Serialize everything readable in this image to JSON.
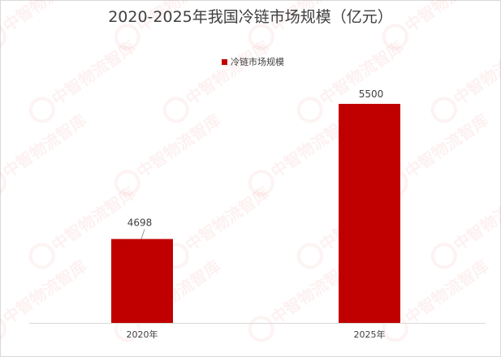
{
  "chart_data": {
    "type": "bar",
    "title": "2020-2025年我国冷链市场规模（亿元）",
    "categories": [
      "2020年",
      "2025年"
    ],
    "series": [
      {
        "name": "冷链市场规模",
        "values": [
          4698,
          5500
        ],
        "color": "#c00000"
      }
    ],
    "data_labels": [
      "4698",
      "5500"
    ],
    "xlabel": "",
    "ylabel": "",
    "ylim": [
      0,
      5500
    ],
    "grid": false,
    "legend_position": "top"
  },
  "watermark": {
    "text": "中智物流智库"
  }
}
